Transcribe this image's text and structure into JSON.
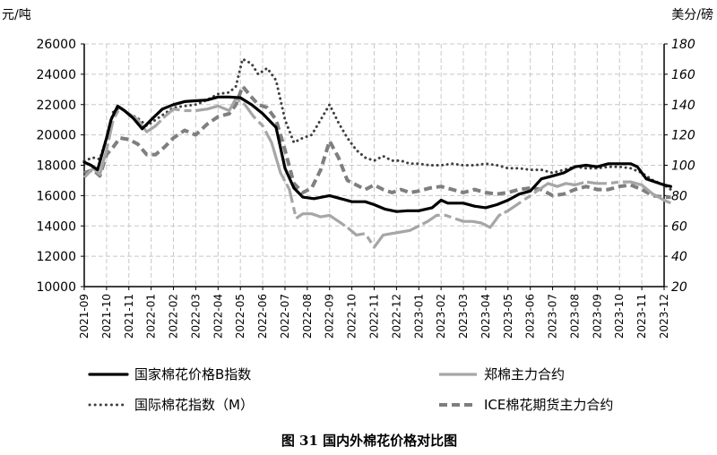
{
  "chart_data": {
    "type": "line",
    "caption": "图 31    国内外棉花价格对比图",
    "y_left_unit": "元/吨",
    "y_right_unit": "美分/磅",
    "y_left_lim": [
      10000,
      26000
    ],
    "y_left_ticks": [
      "10000",
      "12000",
      "14000",
      "16000",
      "18000",
      "20000",
      "22000",
      "24000",
      "26000"
    ],
    "y_right_lim": [
      20,
      180
    ],
    "y_right_ticks": [
      "20",
      "40",
      "60",
      "80",
      "100",
      "120",
      "140",
      "160",
      "180"
    ],
    "x_ticks": [
      "2021-09",
      "2021-10",
      "2021-11",
      "2022-01",
      "2022-02",
      "2022-03",
      "2022-04",
      "2022-05",
      "2022-06",
      "2022-07",
      "2022-08",
      "2022-09",
      "2022-10",
      "2022-11",
      "2022-12",
      "2023-01",
      "2023-02",
      "2023-03",
      "2023-04",
      "2023-05",
      "2023-06",
      "2023-07",
      "2023-08",
      "2023-09",
      "2023-10",
      "2023-11",
      "2023-12"
    ],
    "grid": true,
    "legend_position": "bottom",
    "series": [
      {
        "name": "国家棉花价格B指数",
        "axis": "left",
        "color": "#000000",
        "style": "solid-thick",
        "points": [
          [
            0,
            18200
          ],
          [
            0.3,
            18000
          ],
          [
            0.6,
            17700
          ],
          [
            1.0,
            19800
          ],
          [
            1.2,
            21000
          ],
          [
            1.5,
            21900
          ],
          [
            1.8,
            21600
          ],
          [
            2.2,
            21100
          ],
          [
            2.6,
            20400
          ],
          [
            3.0,
            21000
          ],
          [
            3.5,
            21700
          ],
          [
            4.0,
            22000
          ],
          [
            4.5,
            22200
          ],
          [
            5.0,
            22250
          ],
          [
            5.5,
            22300
          ],
          [
            6.0,
            22500
          ],
          [
            6.5,
            22500
          ],
          [
            7.0,
            22450
          ],
          [
            7.5,
            22000
          ],
          [
            8.0,
            21400
          ],
          [
            8.6,
            20500
          ],
          [
            9.0,
            17800
          ],
          [
            9.4,
            16500
          ],
          [
            9.8,
            15900
          ],
          [
            10.3,
            15800
          ],
          [
            11.0,
            16000
          ],
          [
            11.5,
            15800
          ],
          [
            12.0,
            15600
          ],
          [
            12.6,
            15600
          ],
          [
            13.0,
            15400
          ],
          [
            13.5,
            15100
          ],
          [
            14.0,
            14950
          ],
          [
            14.5,
            15000
          ],
          [
            15.0,
            15000
          ],
          [
            15.6,
            15200
          ],
          [
            16.0,
            15700
          ],
          [
            16.3,
            15500
          ],
          [
            16.7,
            15500
          ],
          [
            17.0,
            15500
          ],
          [
            17.5,
            15300
          ],
          [
            18.0,
            15200
          ],
          [
            18.5,
            15400
          ],
          [
            19.0,
            15700
          ],
          [
            19.5,
            16100
          ],
          [
            20.0,
            16300
          ],
          [
            20.5,
            17100
          ],
          [
            21.0,
            17300
          ],
          [
            21.5,
            17500
          ],
          [
            22.0,
            17900
          ],
          [
            22.5,
            18000
          ],
          [
            23.0,
            17900
          ],
          [
            23.5,
            18100
          ],
          [
            24.0,
            18100
          ],
          [
            24.5,
            18100
          ],
          [
            24.8,
            17900
          ],
          [
            25.2,
            17100
          ],
          [
            25.6,
            16900
          ],
          [
            26.0,
            16700
          ],
          [
            26.3,
            16600
          ]
        ]
      },
      {
        "name": "郑棉主力合约",
        "axis": "left",
        "color": "#a6a6a6",
        "style": "solid-gray",
        "points": [
          [
            0,
            17200
          ],
          [
            0.4,
            17800
          ],
          [
            0.7,
            17400
          ],
          [
            1.0,
            19000
          ],
          [
            1.3,
            21000
          ],
          [
            1.6,
            21800
          ],
          [
            2.0,
            21400
          ],
          [
            2.4,
            21000
          ],
          [
            2.8,
            20200
          ],
          [
            3.2,
            20600
          ],
          [
            3.6,
            21200
          ],
          [
            4.0,
            21700
          ],
          [
            4.5,
            21600
          ],
          [
            5.0,
            21600
          ],
          [
            5.5,
            21700
          ],
          [
            6.0,
            21900
          ],
          [
            6.5,
            21600
          ],
          [
            6.8,
            22400
          ],
          [
            7.2,
            22000
          ],
          [
            7.6,
            21200
          ],
          [
            8.0,
            20600
          ],
          [
            8.4,
            19500
          ],
          [
            8.8,
            17500
          ],
          [
            9.2,
            16400
          ],
          [
            9.5,
            14500
          ],
          [
            9.8,
            14800
          ],
          [
            10.2,
            14800
          ],
          [
            10.6,
            14600
          ],
          [
            11.0,
            14700
          ],
          [
            11.4,
            14300
          ],
          [
            11.8,
            13900
          ],
          [
            12.2,
            13400
          ],
          [
            12.6,
            13500
          ],
          [
            13.0,
            12600
          ],
          [
            13.4,
            13400
          ],
          [
            13.8,
            13500
          ],
          [
            14.2,
            13600
          ],
          [
            14.6,
            13700
          ],
          [
            15.0,
            14000
          ],
          [
            15.4,
            14300
          ],
          [
            15.8,
            14700
          ],
          [
            16.2,
            14700
          ],
          [
            16.6,
            14500
          ],
          [
            17.0,
            14300
          ],
          [
            17.4,
            14300
          ],
          [
            17.8,
            14200
          ],
          [
            18.2,
            13900
          ],
          [
            18.6,
            14700
          ],
          [
            19.0,
            15000
          ],
          [
            19.5,
            15500
          ],
          [
            20.0,
            16000
          ],
          [
            20.4,
            16400
          ],
          [
            20.8,
            16800
          ],
          [
            21.2,
            16600
          ],
          [
            21.6,
            16800
          ],
          [
            22.0,
            16700
          ],
          [
            22.5,
            16900
          ],
          [
            23.0,
            16800
          ],
          [
            23.5,
            16800
          ],
          [
            24.0,
            16900
          ],
          [
            24.5,
            16900
          ],
          [
            25.0,
            16700
          ],
          [
            25.5,
            16100
          ],
          [
            26.0,
            15700
          ],
          [
            26.3,
            15500
          ]
        ]
      },
      {
        "name": "国际棉花指数（M）",
        "axis": "right",
        "color": "#404040",
        "style": "dotted",
        "points": [
          [
            0,
            103
          ],
          [
            0.4,
            105
          ],
          [
            0.7,
            104
          ],
          [
            1.0,
            118
          ],
          [
            1.3,
            135
          ],
          [
            1.6,
            138
          ],
          [
            2.0,
            134
          ],
          [
            2.4,
            131
          ],
          [
            2.8,
            126
          ],
          [
            3.2,
            130
          ],
          [
            3.6,
            134
          ],
          [
            4.0,
            138
          ],
          [
            4.5,
            139
          ],
          [
            5.0,
            140
          ],
          [
            5.5,
            143
          ],
          [
            6.0,
            147
          ],
          [
            6.5,
            148
          ],
          [
            6.8,
            152
          ],
          [
            7.1,
            170
          ],
          [
            7.5,
            167
          ],
          [
            7.8,
            160
          ],
          [
            8.2,
            164
          ],
          [
            8.6,
            156
          ],
          [
            9.0,
            130
          ],
          [
            9.4,
            115
          ],
          [
            9.8,
            118
          ],
          [
            10.2,
            120
          ],
          [
            10.6,
            130
          ],
          [
            11.0,
            140
          ],
          [
            11.4,
            128
          ],
          [
            11.8,
            118
          ],
          [
            12.2,
            110
          ],
          [
            12.6,
            105
          ],
          [
            13.0,
            103
          ],
          [
            13.4,
            106
          ],
          [
            13.8,
            103
          ],
          [
            14.2,
            103
          ],
          [
            14.6,
            101
          ],
          [
            15.0,
            101
          ],
          [
            15.5,
            100
          ],
          [
            16.0,
            100
          ],
          [
            16.5,
            101
          ],
          [
            17.0,
            100
          ],
          [
            17.5,
            100
          ],
          [
            18.0,
            101
          ],
          [
            18.5,
            100
          ],
          [
            19.0,
            98
          ],
          [
            19.5,
            98
          ],
          [
            20.0,
            97
          ],
          [
            20.5,
            97
          ],
          [
            21.0,
            95
          ],
          [
            21.5,
            97
          ],
          [
            22.0,
            99
          ],
          [
            22.5,
            98
          ],
          [
            23.0,
            98
          ],
          [
            23.5,
            99
          ],
          [
            24.0,
            99
          ],
          [
            24.5,
            98
          ],
          [
            25.0,
            95
          ],
          [
            25.5,
            90
          ],
          [
            26.0,
            87
          ],
          [
            26.3,
            84
          ]
        ]
      },
      {
        "name": "ICE棉花期货主力合约",
        "axis": "right",
        "color": "#7f7f7f",
        "style": "dashed-thick",
        "points": [
          [
            0,
            95
          ],
          [
            0.4,
            97
          ],
          [
            0.7,
            93
          ],
          [
            1.0,
            107
          ],
          [
            1.3,
            112
          ],
          [
            1.6,
            118
          ],
          [
            2.0,
            117
          ],
          [
            2.4,
            114
          ],
          [
            2.8,
            107
          ],
          [
            3.2,
            107
          ],
          [
            3.6,
            112
          ],
          [
            4.0,
            118
          ],
          [
            4.5,
            123
          ],
          [
            5.0,
            120
          ],
          [
            5.5,
            127
          ],
          [
            6.0,
            132
          ],
          [
            6.5,
            134
          ],
          [
            6.8,
            140
          ],
          [
            7.1,
            152
          ],
          [
            7.5,
            145
          ],
          [
            7.8,
            140
          ],
          [
            8.2,
            138
          ],
          [
            8.6,
            130
          ],
          [
            9.0,
            110
          ],
          [
            9.4,
            88
          ],
          [
            9.8,
            82
          ],
          [
            10.2,
            85
          ],
          [
            10.6,
            97
          ],
          [
            11.0,
            116
          ],
          [
            11.4,
            105
          ],
          [
            11.8,
            90
          ],
          [
            12.2,
            87
          ],
          [
            12.6,
            84
          ],
          [
            13.0,
            87
          ],
          [
            13.4,
            84
          ],
          [
            13.8,
            82
          ],
          [
            14.2,
            84
          ],
          [
            14.6,
            82
          ],
          [
            15.0,
            83
          ],
          [
            15.5,
            85
          ],
          [
            16.0,
            86
          ],
          [
            16.5,
            84
          ],
          [
            17.0,
            82
          ],
          [
            17.5,
            84
          ],
          [
            18.0,
            82
          ],
          [
            18.5,
            81
          ],
          [
            19.0,
            82
          ],
          [
            19.5,
            84
          ],
          [
            20.0,
            85
          ],
          [
            20.5,
            84
          ],
          [
            21.0,
            80
          ],
          [
            21.5,
            81
          ],
          [
            22.0,
            84
          ],
          [
            22.5,
            86
          ],
          [
            23.0,
            84
          ],
          [
            23.5,
            84
          ],
          [
            24.0,
            86
          ],
          [
            24.5,
            87
          ],
          [
            25.0,
            84
          ],
          [
            25.5,
            80
          ],
          [
            26.0,
            79
          ],
          [
            26.3,
            79
          ]
        ]
      }
    ]
  }
}
